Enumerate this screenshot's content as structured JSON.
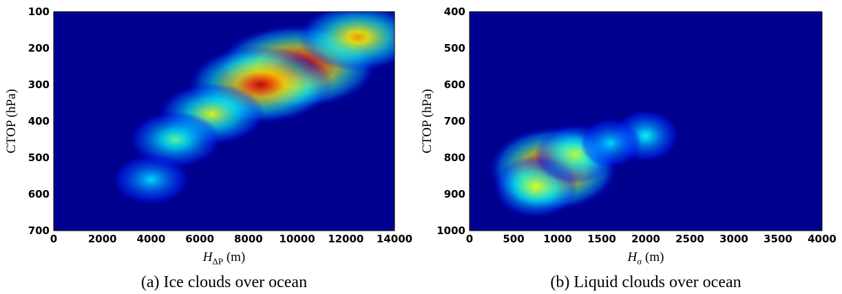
{
  "chart_data": [
    {
      "type": "heatmap",
      "caption": "(a) Ice clouds over ocean",
      "xlabel": "H",
      "xlabel_sub": "ΔP",
      "xlabel_unit": "(m)",
      "ylabel": "CTOP (hPa)",
      "xlim": [
        0,
        14000
      ],
      "ylim": [
        700,
        100
      ],
      "y_inverted": true,
      "xticks": [
        "0",
        "2000",
        "4000",
        "6000",
        "8000",
        "10000",
        "12000",
        "14000"
      ],
      "yticks": [
        "100",
        "200",
        "300",
        "400",
        "500",
        "600",
        "700"
      ],
      "colormap": "jet",
      "background_color": "#00008f",
      "density_peaks": [
        {
          "x": 10000,
          "y": 250,
          "intensity": 1.0
        },
        {
          "x": 8500,
          "y": 300,
          "intensity": 0.85
        },
        {
          "x": 12500,
          "y": 170,
          "intensity": 0.6
        },
        {
          "x": 6500,
          "y": 380,
          "intensity": 0.45
        },
        {
          "x": 5000,
          "y": 450,
          "intensity": 0.3
        },
        {
          "x": 4000,
          "y": 560,
          "intensity": 0.15
        }
      ]
    },
    {
      "type": "heatmap",
      "caption": "(b) Liquid clouds over ocean",
      "xlabel": "H",
      "xlabel_sub": "σ",
      "xlabel_unit": "(m)",
      "ylabel": "CTOP (hPa)",
      "xlim": [
        0,
        4000
      ],
      "ylim": [
        1000,
        400
      ],
      "y_inverted": true,
      "xticks": [
        "0",
        "500",
        "1000",
        "1500",
        "2000",
        "2500",
        "3000",
        "3500",
        "4000"
      ],
      "yticks": [
        "400",
        "500",
        "600",
        "700",
        "800",
        "900",
        "1000"
      ],
      "colormap": "jet",
      "background_color": "#00008f",
      "density_peaks": [
        {
          "x": 950,
          "y": 830,
          "intensity": 1.0
        },
        {
          "x": 750,
          "y": 880,
          "intensity": 0.45
        },
        {
          "x": 1200,
          "y": 790,
          "intensity": 0.4
        },
        {
          "x": 2000,
          "y": 740,
          "intensity": 0.2
        },
        {
          "x": 1600,
          "y": 760,
          "intensity": 0.15
        }
      ]
    }
  ]
}
